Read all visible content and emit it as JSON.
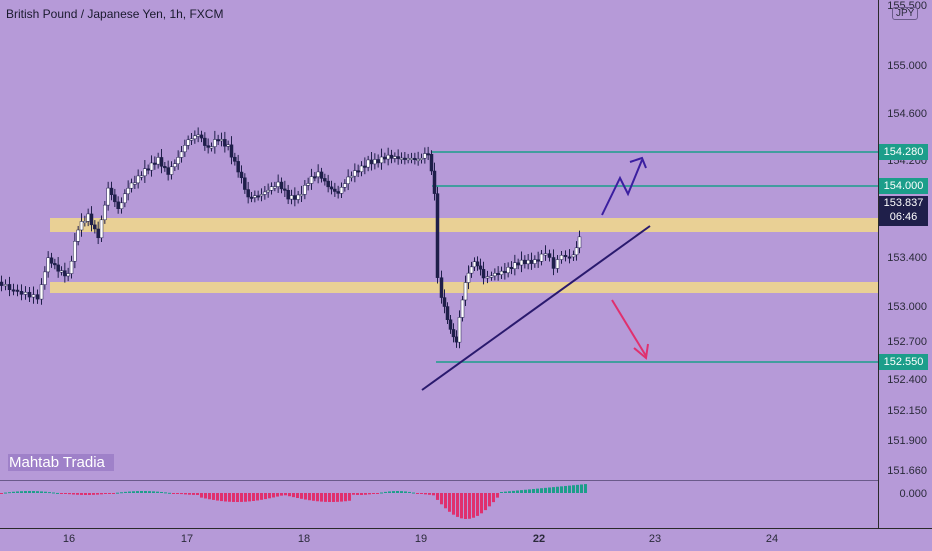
{
  "title": "British Pound / Japanese Yen, 1h, FXCM",
  "watermark": "Mahtab Tradia",
  "currency_badge": "JPY",
  "price_axis": [
    "155.500",
    "155.000",
    "154.600",
    "154.200",
    "153.400",
    "153.000",
    "152.700",
    "152.400",
    "152.150",
    "151.900",
    "151.660"
  ],
  "oscillator_axis": "0.000",
  "price_tags": [
    {
      "label": "154.280",
      "color": "#1c9e8a"
    },
    {
      "label": "154.000",
      "color": "#1c9e8a"
    },
    {
      "label": "152.550",
      "color": "#1c9e8a"
    }
  ],
  "current_price": {
    "price": "153.837",
    "countdown": "06:46"
  },
  "time_axis": [
    {
      "label": "16",
      "bold": false
    },
    {
      "label": "17",
      "bold": false
    },
    {
      "label": "18",
      "bold": false
    },
    {
      "label": "19",
      "bold": false
    },
    {
      "label": "22",
      "bold": true
    },
    {
      "label": "23",
      "bold": false
    },
    {
      "label": "24",
      "bold": false
    }
  ],
  "colors": {
    "background": "#b69ad8",
    "zone": "#f2d98a",
    "level_line": "#1c9e8a",
    "trendline": "#2a1a6e",
    "up_arrow": "#3b1fa0",
    "down_arrow": "#e0306e",
    "bull_candle": "#ffffff",
    "bear_candle": "#1f1f4a",
    "osc_pos": "#1c9e8a",
    "osc_neg": "#e0306e"
  }
}
